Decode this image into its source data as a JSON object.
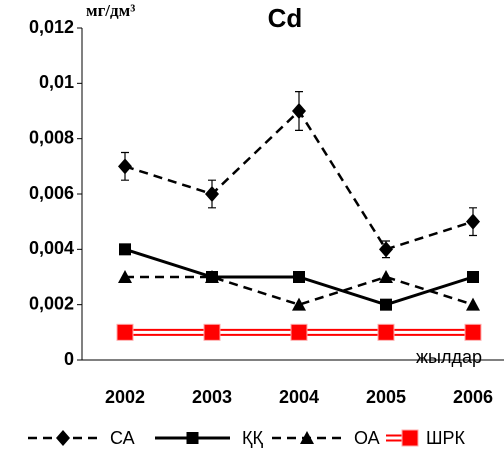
{
  "chart_data": {
    "type": "line",
    "title": "Cd",
    "y_label": "мг/дм³",
    "x_label": "жылдар",
    "categories": [
      "2002",
      "2003",
      "2004",
      "2005",
      "2006"
    ],
    "ylim": [
      0,
      0.012
    ],
    "yticks": [
      0,
      {
        "value": 0.002,
        "label": "0,002"
      },
      {
        "value": 0.004,
        "label": "0,004"
      },
      {
        "value": 0.006,
        "label": "0,006"
      },
      {
        "value": 0.008,
        "label": "0,008"
      },
      {
        "value": 0.01,
        "label": "0,01"
      },
      {
        "value": 0.012,
        "label": "0,012"
      }
    ],
    "series": [
      {
        "name": "СА",
        "color": "#000000",
        "line_style": "dashed",
        "marker": "diamond",
        "values": [
          0.007,
          0.006,
          0.009,
          0.004,
          0.005
        ],
        "errors": [
          0.0005,
          0.0005,
          0.0007,
          0.0003,
          0.0005
        ]
      },
      {
        "name": "ҚҚ",
        "color": "#000000",
        "line_style": "solid",
        "marker": "square",
        "values": [
          0.004,
          0.003,
          0.003,
          0.002,
          0.003
        ]
      },
      {
        "name": "ОА",
        "color": "#000000",
        "line_style": "dashed",
        "marker": "triangle",
        "values": [
          0.003,
          0.003,
          0.002,
          0.003,
          0.002
        ]
      },
      {
        "name": "ШРК",
        "color": "#ff0000",
        "line_style": "double",
        "marker": "square",
        "values": [
          0.001,
          0.001,
          0.001,
          0.001,
          0.001
        ]
      }
    ]
  }
}
